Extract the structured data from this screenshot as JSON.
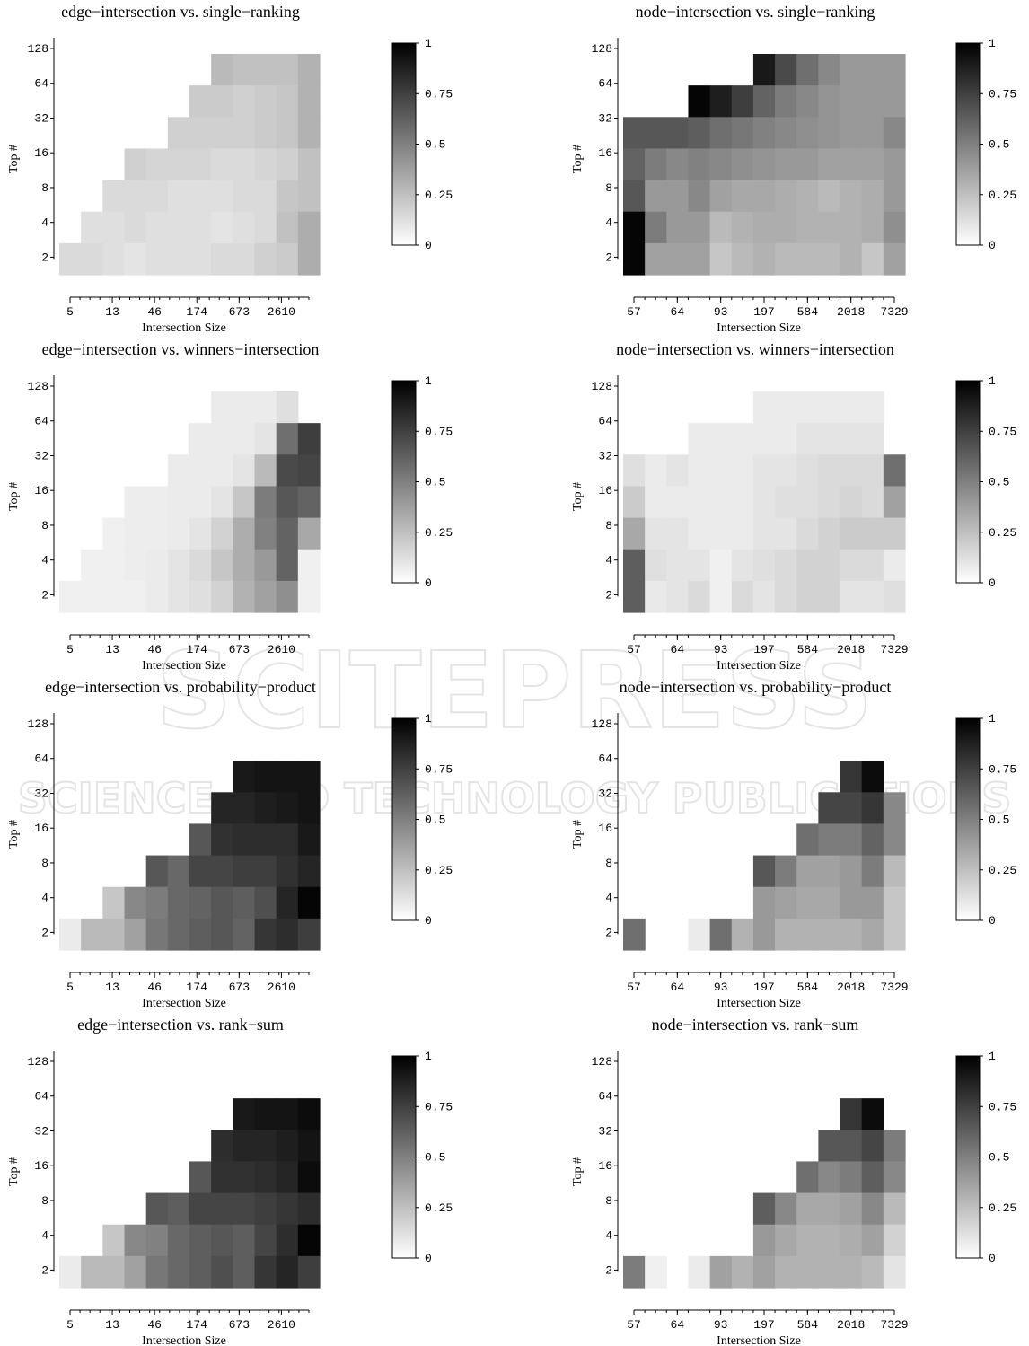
{
  "watermark": {
    "line1": "SCITEPRESS",
    "line2": "SCIENCE AND TECHNOLOGY PUBLICATIONS"
  },
  "colorbar": {
    "ticks": [
      "0",
      "0.25",
      "0.5",
      "0.75",
      "1"
    ],
    "min": 0,
    "max": 1,
    "low_color": "#ffffff",
    "high_color": "#000000"
  },
  "chart_data": [
    {
      "type": "heatmap",
      "title": "edge−intersection vs. single−ranking",
      "xlabel": "Intersection Size",
      "ylabel": "Top #",
      "x_ticks": [
        "5",
        "13",
        "46",
        "174",
        "673",
        "2610"
      ],
      "y_ticks": [
        "2",
        "4",
        "8",
        "16",
        "32",
        "64",
        "128"
      ],
      "rows_top_to_bottom": [
        [
          null,
          null,
          null,
          null,
          null,
          null,
          null,
          0.25,
          0.22,
          0.22,
          0.22,
          0.28
        ],
        [
          null,
          null,
          null,
          null,
          null,
          null,
          0.18,
          0.18,
          0.16,
          0.18,
          0.2,
          0.28
        ],
        [
          null,
          null,
          null,
          null,
          null,
          0.16,
          0.16,
          0.16,
          0.16,
          0.18,
          0.2,
          0.28
        ],
        [
          null,
          null,
          null,
          0.16,
          0.14,
          0.14,
          0.14,
          0.12,
          0.12,
          0.14,
          0.16,
          0.22
        ],
        [
          null,
          null,
          0.12,
          0.12,
          0.12,
          0.1,
          0.1,
          0.1,
          0.12,
          0.12,
          0.2,
          0.22
        ],
        [
          null,
          0.1,
          0.1,
          0.12,
          0.1,
          0.1,
          0.1,
          0.08,
          0.1,
          0.12,
          0.22,
          0.3
        ],
        [
          0.12,
          0.12,
          0.1,
          0.08,
          0.1,
          0.1,
          0.1,
          0.12,
          0.12,
          0.16,
          0.18,
          0.3
        ]
      ]
    },
    {
      "type": "heatmap",
      "title": "node−intersection vs. single−ranking",
      "xlabel": "Intersection Size",
      "ylabel": "Top #",
      "x_ticks": [
        "57",
        "64",
        "93",
        "197",
        "584",
        "2018",
        "7329"
      ],
      "y_ticks": [
        "2",
        "4",
        "8",
        "16",
        "32",
        "64",
        "128"
      ],
      "rows_top_to_bottom": [
        [
          null,
          null,
          null,
          null,
          null,
          null,
          0.9,
          0.7,
          0.55,
          0.45,
          0.38,
          0.38,
          0.38
        ],
        [
          null,
          null,
          null,
          0.98,
          0.88,
          0.75,
          0.6,
          0.5,
          0.45,
          0.4,
          0.38,
          0.38,
          0.38
        ],
        [
          0.65,
          0.65,
          0.65,
          0.62,
          0.55,
          0.52,
          0.48,
          0.45,
          0.42,
          0.4,
          0.38,
          0.38,
          0.45
        ],
        [
          0.6,
          0.5,
          0.45,
          0.48,
          0.45,
          0.42,
          0.4,
          0.38,
          0.38,
          0.35,
          0.35,
          0.35,
          0.38
        ],
        [
          0.65,
          0.38,
          0.38,
          0.45,
          0.35,
          0.32,
          0.32,
          0.3,
          0.28,
          0.25,
          0.28,
          0.3,
          0.38
        ],
        [
          0.98,
          0.5,
          0.38,
          0.38,
          0.25,
          0.28,
          0.3,
          0.3,
          0.28,
          0.28,
          0.28,
          0.3,
          0.42
        ],
        [
          0.98,
          0.35,
          0.35,
          0.35,
          0.2,
          0.25,
          0.28,
          0.25,
          0.25,
          0.25,
          0.28,
          0.2,
          0.35
        ]
      ]
    },
    {
      "type": "heatmap",
      "title": "edge−intersection vs. winners−intersection",
      "xlabel": "Intersection Size",
      "ylabel": "Top #",
      "x_ticks": [
        "5",
        "13",
        "46",
        "174",
        "673",
        "2610"
      ],
      "y_ticks": [
        "2",
        "4",
        "8",
        "16",
        "32",
        "64",
        "128"
      ],
      "rows_top_to_bottom": [
        [
          null,
          null,
          null,
          null,
          null,
          null,
          null,
          0.05,
          0.05,
          0.05,
          0.1,
          null
        ],
        [
          null,
          null,
          null,
          null,
          null,
          null,
          0.05,
          0.05,
          0.05,
          0.08,
          0.55,
          0.75
        ],
        [
          null,
          null,
          null,
          null,
          null,
          0.05,
          0.05,
          0.05,
          0.08,
          0.25,
          0.7,
          0.72
        ],
        [
          null,
          null,
          null,
          0.04,
          0.04,
          0.05,
          0.05,
          0.08,
          0.2,
          0.5,
          0.65,
          0.6
        ],
        [
          null,
          null,
          0.03,
          0.04,
          0.04,
          0.05,
          0.08,
          0.15,
          0.3,
          0.48,
          0.6,
          0.32
        ],
        [
          null,
          0.03,
          0.03,
          0.04,
          0.05,
          0.08,
          0.12,
          0.2,
          0.3,
          0.38,
          0.6,
          0.03
        ],
        [
          0.03,
          0.03,
          0.03,
          0.03,
          0.05,
          0.08,
          0.1,
          0.15,
          0.28,
          0.35,
          0.42,
          0.03
        ]
      ]
    },
    {
      "type": "heatmap",
      "title": "node−intersection vs. winners−intersection",
      "xlabel": "Intersection Size",
      "ylabel": "Top #",
      "x_ticks": [
        "57",
        "64",
        "93",
        "197",
        "584",
        "2018",
        "7329"
      ],
      "y_ticks": [
        "2",
        "4",
        "8",
        "16",
        "32",
        "64",
        "128"
      ],
      "rows_top_to_bottom": [
        [
          null,
          null,
          null,
          null,
          null,
          null,
          0.05,
          0.05,
          0.05,
          0.05,
          0.05,
          0.05,
          null
        ],
        [
          null,
          null,
          null,
          0.05,
          0.05,
          0.05,
          0.05,
          0.05,
          0.08,
          0.08,
          0.08,
          0.08,
          null
        ],
        [
          0.1,
          0.05,
          0.08,
          0.05,
          0.05,
          0.05,
          0.08,
          0.08,
          0.1,
          0.12,
          0.12,
          0.12,
          0.55
        ],
        [
          0.18,
          0.05,
          0.05,
          0.05,
          0.05,
          0.05,
          0.08,
          0.1,
          0.1,
          0.12,
          0.14,
          0.12,
          0.35
        ],
        [
          0.32,
          0.08,
          0.08,
          0.05,
          0.05,
          0.05,
          0.08,
          0.08,
          0.12,
          0.15,
          0.18,
          0.18,
          0.18
        ],
        [
          0.62,
          0.1,
          0.08,
          0.08,
          0.03,
          0.08,
          0.1,
          0.12,
          0.15,
          0.15,
          0.12,
          0.12,
          0.05
        ],
        [
          0.62,
          0.06,
          0.08,
          0.12,
          0.03,
          0.12,
          0.08,
          0.12,
          0.15,
          0.15,
          0.08,
          0.08,
          0.1
        ]
      ]
    },
    {
      "type": "heatmap",
      "title": "edge−intersection vs. probability−product",
      "xlabel": "Intersection Size",
      "ylabel": "Top #",
      "x_ticks": [
        "5",
        "13",
        "46",
        "174",
        "673",
        "2610"
      ],
      "y_ticks": [
        "2",
        "4",
        "8",
        "16",
        "32",
        "64",
        "128"
      ],
      "rows_top_to_bottom": [
        [
          null,
          null,
          null,
          null,
          null,
          null,
          null,
          null,
          null,
          null,
          null,
          null
        ],
        [
          null,
          null,
          null,
          null,
          null,
          null,
          null,
          null,
          0.9,
          0.92,
          0.92,
          0.92
        ],
        [
          null,
          null,
          null,
          null,
          null,
          null,
          null,
          0.85,
          0.85,
          0.88,
          0.9,
          0.92
        ],
        [
          null,
          null,
          null,
          null,
          null,
          null,
          0.65,
          0.8,
          0.82,
          0.82,
          0.82,
          0.9
        ],
        [
          null,
          null,
          null,
          null,
          0.65,
          0.58,
          0.72,
          0.72,
          0.75,
          0.75,
          0.8,
          0.85
        ],
        [
          null,
          null,
          0.2,
          0.45,
          0.5,
          0.58,
          0.6,
          0.65,
          0.62,
          0.68,
          0.85,
          0.98
        ],
        [
          0.05,
          0.25,
          0.25,
          0.35,
          0.52,
          0.58,
          0.62,
          0.65,
          0.6,
          0.78,
          0.82,
          0.75
        ]
      ]
    },
    {
      "type": "heatmap",
      "title": "node−intersection vs. probability−product",
      "xlabel": "Intersection Size",
      "ylabel": "Top #",
      "x_ticks": [
        "57",
        "64",
        "93",
        "197",
        "584",
        "2018",
        "7329"
      ],
      "y_ticks": [
        "2",
        "4",
        "8",
        "16",
        "32",
        "64",
        "128"
      ],
      "rows_top_to_bottom": [
        [
          null,
          null,
          null,
          null,
          null,
          null,
          null,
          null,
          null,
          null,
          null,
          null,
          null
        ],
        [
          null,
          null,
          null,
          null,
          null,
          null,
          null,
          null,
          null,
          null,
          0.78,
          0.95,
          null
        ],
        [
          null,
          null,
          null,
          null,
          null,
          null,
          null,
          null,
          null,
          0.72,
          0.72,
          0.78,
          0.45
        ],
        [
          null,
          null,
          null,
          null,
          null,
          null,
          null,
          null,
          0.55,
          0.5,
          0.5,
          0.6,
          0.45
        ],
        [
          null,
          null,
          null,
          null,
          null,
          null,
          0.65,
          0.5,
          0.35,
          0.35,
          0.38,
          0.5,
          0.25
        ],
        [
          null,
          null,
          null,
          null,
          null,
          null,
          0.38,
          0.35,
          0.32,
          0.32,
          0.38,
          0.38,
          0.2
        ],
        [
          0.55,
          null,
          null,
          0.05,
          0.55,
          0.28,
          0.38,
          0.28,
          0.28,
          0.28,
          0.28,
          0.32,
          0.2
        ]
      ]
    },
    {
      "type": "heatmap",
      "title": "edge−intersection vs. rank−sum",
      "xlabel": "Intersection Size",
      "ylabel": "Top #",
      "x_ticks": [
        "5",
        "13",
        "46",
        "174",
        "673",
        "2610"
      ],
      "y_ticks": [
        "2",
        "4",
        "8",
        "16",
        "32",
        "64",
        "128"
      ],
      "rows_top_to_bottom": [
        [
          null,
          null,
          null,
          null,
          null,
          null,
          null,
          null,
          null,
          null,
          null,
          null
        ],
        [
          null,
          null,
          null,
          null,
          null,
          null,
          null,
          null,
          0.9,
          0.92,
          0.92,
          0.95
        ],
        [
          null,
          null,
          null,
          null,
          null,
          null,
          null,
          0.82,
          0.85,
          0.85,
          0.88,
          0.92
        ],
        [
          null,
          null,
          null,
          null,
          null,
          null,
          0.65,
          0.8,
          0.8,
          0.82,
          0.85,
          0.95
        ],
        [
          null,
          null,
          null,
          null,
          0.65,
          0.62,
          0.72,
          0.72,
          0.72,
          0.75,
          0.78,
          0.82
        ],
        [
          null,
          null,
          0.2,
          0.45,
          0.48,
          0.58,
          0.62,
          0.65,
          0.62,
          0.72,
          0.82,
          0.98
        ],
        [
          0.05,
          0.25,
          0.25,
          0.35,
          0.52,
          0.58,
          0.62,
          0.68,
          0.62,
          0.78,
          0.85,
          0.75
        ]
      ]
    },
    {
      "type": "heatmap",
      "title": "node−intersection vs. rank−sum",
      "xlabel": "Intersection Size",
      "ylabel": "Top #",
      "x_ticks": [
        "57",
        "64",
        "93",
        "197",
        "584",
        "2018",
        "7329"
      ],
      "y_ticks": [
        "2",
        "4",
        "8",
        "16",
        "32",
        "64",
        "128"
      ],
      "rows_top_to_bottom": [
        [
          null,
          null,
          null,
          null,
          null,
          null,
          null,
          null,
          null,
          null,
          null,
          null,
          null
        ],
        [
          null,
          null,
          null,
          null,
          null,
          null,
          null,
          null,
          null,
          null,
          0.78,
          0.95,
          null
        ],
        [
          null,
          null,
          null,
          null,
          null,
          null,
          null,
          null,
          null,
          0.65,
          0.65,
          0.72,
          0.5
        ],
        [
          null,
          null,
          null,
          null,
          null,
          null,
          null,
          null,
          0.55,
          0.45,
          0.5,
          0.62,
          0.45
        ],
        [
          null,
          null,
          null,
          null,
          null,
          null,
          0.62,
          0.45,
          0.32,
          0.32,
          0.35,
          0.45,
          0.25
        ],
        [
          null,
          null,
          null,
          null,
          null,
          null,
          0.38,
          0.32,
          0.28,
          0.28,
          0.3,
          0.35,
          0.15
        ],
        [
          0.5,
          0.03,
          null,
          0.05,
          0.35,
          0.28,
          0.35,
          0.28,
          0.28,
          0.28,
          0.28,
          0.25,
          0.08
        ]
      ]
    }
  ]
}
